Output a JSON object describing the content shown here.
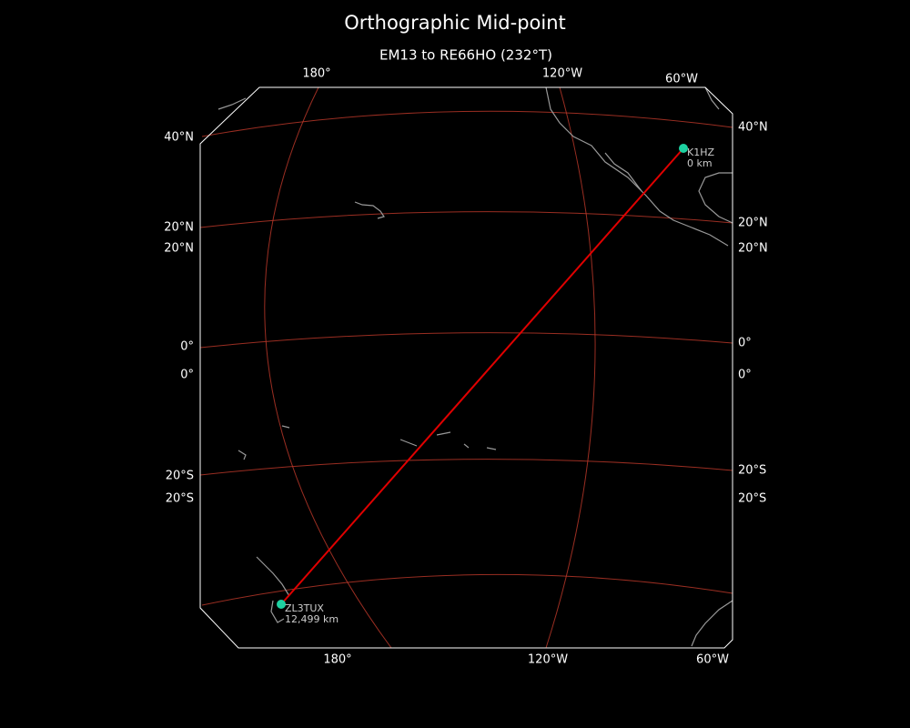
{
  "title": "Orthographic Mid-point",
  "subtitle": "EM13 to RE66HO (232°T)",
  "top_labels": [
    "180°",
    "120°W",
    "60°W"
  ],
  "bottom_labels": [
    "180°",
    "120°W",
    "60°W"
  ],
  "left_labels": [
    "40°N",
    "20°N",
    "20°N",
    "0°",
    "0°",
    "20°S",
    "20°S"
  ],
  "right_labels": [
    "40°N",
    "20°N",
    "20°N",
    "0°",
    "0°",
    "20°S",
    "20°S"
  ],
  "stations": [
    {
      "call": "K1HZ",
      "distance": "0 km"
    },
    {
      "call": "ZL3TUX",
      "distance": "12,499 km"
    }
  ]
}
